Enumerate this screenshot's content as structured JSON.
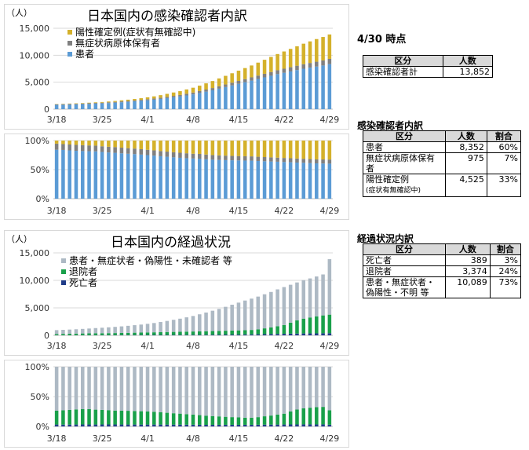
{
  "colors": {
    "patient": "#5b9bd5",
    "asymptomatic": "#808080",
    "pending": "#d4b12b",
    "deaths": "#1f3c88",
    "recovered": "#19a04a",
    "other": "#adb9c4"
  },
  "side": {
    "date_title": "4/30 時点",
    "total_table": {
      "headers": [
        "区分",
        "人数"
      ],
      "rows": [
        [
          "感染確認者計",
          "13,852"
        ]
      ]
    },
    "breakdown_title": "感染確認者内訳",
    "breakdown_table": {
      "headers": [
        "区分",
        "人数",
        "割合"
      ],
      "rows": [
        {
          "label": "患者",
          "count": "8,352",
          "pct": "60%"
        },
        {
          "label": "無症状病原体保有者",
          "count": "975",
          "pct": "7%"
        },
        {
          "label": "陽性確定例",
          "note": "(症状有無確認中)",
          "count": "4,525",
          "pct": "33%"
        }
      ]
    },
    "progress_title": "経過状況内訳",
    "progress_table": {
      "headers": [
        "区分",
        "人数",
        "割合"
      ],
      "rows": [
        {
          "label": "死亡者",
          "count": "389",
          "pct": "3%"
        },
        {
          "label": "退院者",
          "count": "3,374",
          "pct": "24%"
        },
        {
          "label": "患者・無症状者・偽陽性・不明 等",
          "count": "10,089",
          "pct": "73%"
        }
      ]
    }
  },
  "chart_data": [
    {
      "id": "infection",
      "type": "bar",
      "stacked": true,
      "title": "日本国内の感染確認者内訳",
      "ylabel": "（人）",
      "ylim": [
        0,
        15000
      ],
      "yticks": [
        "0",
        "5,000",
        "10,000",
        "15,000"
      ],
      "ytick_values": [
        0,
        5000,
        10000,
        15000
      ],
      "x_ticks": [
        "3/18",
        "3/25",
        "4/1",
        "4/8",
        "4/15",
        "4/22",
        "4/29"
      ],
      "legend": [
        "陽性確定例(症状有無確認中)",
        "無症状病原体保有者",
        "患者"
      ],
      "series": [
        {
          "name": "患者",
          "color_key": "patient",
          "values": [
            800,
            830,
            860,
            890,
            930,
            980,
            1030,
            1070,
            1130,
            1200,
            1280,
            1360,
            1450,
            1540,
            1650,
            1760,
            1900,
            2050,
            2200,
            2350,
            2550,
            2750,
            3000,
            3250,
            3500,
            3800,
            4100,
            4400,
            4700,
            5000,
            5300,
            5600,
            5900,
            6200,
            6500,
            6750,
            7000,
            7250,
            7500,
            7700,
            7900,
            8100,
            8352
          ]
        },
        {
          "name": "無症状病原体保有者",
          "color_key": "asymptomatic",
          "values": [
            100,
            100,
            105,
            110,
            115,
            120,
            125,
            130,
            140,
            150,
            160,
            170,
            180,
            190,
            200,
            215,
            230,
            250,
            270,
            290,
            310,
            330,
            360,
            390,
            420,
            450,
            480,
            510,
            540,
            570,
            600,
            630,
            660,
            690,
            720,
            750,
            780,
            810,
            840,
            870,
            900,
            940,
            975
          ]
        },
        {
          "name": "陽性確定例(症状有無確認中)",
          "color_key": "pending",
          "values": [
            50,
            60,
            70,
            80,
            90,
            100,
            110,
            130,
            150,
            170,
            200,
            230,
            260,
            300,
            350,
            400,
            470,
            540,
            620,
            700,
            800,
            900,
            1000,
            1150,
            1300,
            1450,
            1600,
            1750,
            1900,
            2050,
            2200,
            2400,
            2600,
            2800,
            3000,
            3200,
            3400,
            3600,
            3800,
            4000,
            4200,
            4350,
            4525
          ]
        }
      ]
    },
    {
      "id": "infection_pct",
      "type": "bar",
      "stacked": true,
      "percent": true,
      "ylim": [
        0,
        100
      ],
      "yticks": [
        "0%",
        "50%",
        "100%"
      ],
      "ytick_values": [
        0,
        50,
        100
      ],
      "x_ticks": [
        "3/18",
        "3/25",
        "4/1",
        "4/8",
        "4/15",
        "4/22",
        "4/29"
      ],
      "series_from": "infection"
    },
    {
      "id": "progress",
      "type": "bar",
      "stacked": true,
      "title": "日本国内の経過状況",
      "ylabel": "（人）",
      "ylim": [
        0,
        15000
      ],
      "yticks": [
        "0",
        "5,000",
        "10,000",
        "15,000"
      ],
      "ytick_values": [
        0,
        5000,
        10000,
        15000
      ],
      "x_ticks": [
        "3/18",
        "3/25",
        "4/1",
        "4/8",
        "4/15",
        "4/22",
        "4/29"
      ],
      "legend": [
        "患者・無症状者・偽陽性・未確認者 等",
        "退院者",
        "死亡者"
      ],
      "series": [
        {
          "name": "死亡者",
          "color_key": "deaths",
          "values": [
            30,
            30,
            32,
            35,
            38,
            40,
            42,
            45,
            48,
            50,
            52,
            55,
            58,
            60,
            65,
            70,
            75,
            80,
            85,
            90,
            95,
            100,
            105,
            110,
            120,
            130,
            140,
            150,
            160,
            170,
            180,
            200,
            220,
            240,
            260,
            280,
            300,
            320,
            340,
            350,
            360,
            375,
            389
          ]
        },
        {
          "name": "退院者",
          "color_key": "recovered",
          "values": [
            220,
            240,
            260,
            280,
            300,
            320,
            330,
            340,
            350,
            360,
            380,
            400,
            420,
            440,
            460,
            480,
            500,
            520,
            540,
            560,
            580,
            600,
            620,
            640,
            660,
            680,
            700,
            720,
            740,
            760,
            800,
            900,
            1050,
            1200,
            1400,
            1600,
            2000,
            2400,
            2700,
            2900,
            3100,
            3250,
            3374
          ]
        },
        {
          "name": "患者・無症状者・偽陽性・未確認者 等",
          "color_key": "other",
          "values": [
            700,
            730,
            760,
            790,
            830,
            880,
            950,
            1000,
            1060,
            1130,
            1200,
            1280,
            1370,
            1460,
            1570,
            1690,
            1850,
            2020,
            2200,
            2380,
            2600,
            2820,
            3100,
            3400,
            3700,
            4000,
            4350,
            4700,
            5050,
            5400,
            5700,
            5950,
            6200,
            6450,
            6700,
            6900,
            6900,
            6900,
            7000,
            7100,
            7250,
            7450,
            10089
          ]
        }
      ]
    },
    {
      "id": "progress_pct",
      "type": "bar",
      "stacked": true,
      "percent": true,
      "ylim": [
        0,
        100
      ],
      "yticks": [
        "0%",
        "50%",
        "100%"
      ],
      "ytick_values": [
        0,
        50,
        100
      ],
      "x_ticks": [
        "3/18",
        "3/25",
        "4/1",
        "4/8",
        "4/15",
        "4/22",
        "4/29"
      ],
      "series_from": "progress"
    }
  ]
}
